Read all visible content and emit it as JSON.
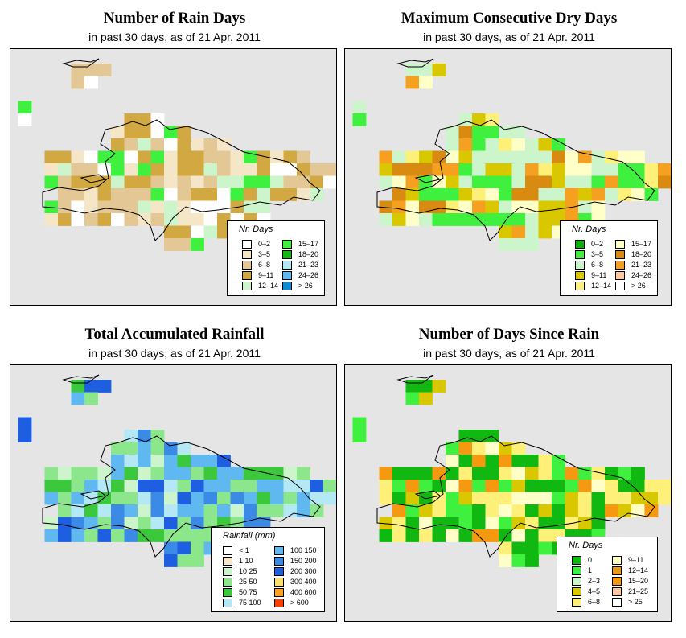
{
  "panels": [
    {
      "title": "Number of Rain Days",
      "subtitle": "in past 30 days, as of  21 Apr. 2011",
      "legend": {
        "title": "Nr. Days",
        "items": [
          {
            "label": "0–2",
            "color": "#ffffff"
          },
          {
            "label": "3–5",
            "color": "#f5e6c8"
          },
          {
            "label": "6–8",
            "color": "#e3c896"
          },
          {
            "label": "9–11",
            "color": "#d2a843"
          },
          {
            "label": "12–14",
            "color": "#ccf5cc"
          },
          {
            "label": "15–17",
            "color": "#3ff03f"
          },
          {
            "label": "18–20",
            "color": "#11b811"
          },
          {
            "label": "21–23",
            "color": "#b5e8f5"
          },
          {
            "label": "24–26",
            "color": "#60b8f0"
          },
          {
            "label": "> 26",
            "color": "#0d8ad6"
          }
        ]
      }
    },
    {
      "title": "Maximum Consecutive Dry Days",
      "subtitle": "in past 30 days, as of  21 Apr. 2011",
      "legend": {
        "title": "Nr. Days",
        "items": [
          {
            "label": "0–2",
            "color": "#0fae0f"
          },
          {
            "label": "3–5",
            "color": "#3ff03f"
          },
          {
            "label": "6–8",
            "color": "#ccf5cc"
          },
          {
            "label": "9–11",
            "color": "#d9c800"
          },
          {
            "label": "12–14",
            "color": "#fff07a"
          },
          {
            "label": "15–17",
            "color": "#ffffc8"
          },
          {
            "label": "18–20",
            "color": "#d98a10"
          },
          {
            "label": "21–23",
            "color": "#f5a020"
          },
          {
            "label": "24–26",
            "color": "#ffc8a0"
          },
          {
            "label": "> 26",
            "color": "#ffffff"
          }
        ]
      }
    },
    {
      "title": "Total Accumulated Rainfall",
      "subtitle": "in past 30 days, as of  21 Apr. 2011",
      "legend": {
        "title": "Rainfall (mm)",
        "items": [
          {
            "label": "< 1",
            "color": "#ffffff"
          },
          {
            "label": "1    10",
            "color": "#f5e6c8"
          },
          {
            "label": "10    25",
            "color": "#ccf5cc"
          },
          {
            "label": "25    50",
            "color": "#8ce68c"
          },
          {
            "label": "50    75",
            "color": "#3cc83c"
          },
          {
            "label": "75   100",
            "color": "#b5e8f5"
          },
          {
            "label": "100   150",
            "color": "#60b8f0"
          },
          {
            "label": "150   200",
            "color": "#3a8ae6"
          },
          {
            "label": "200   300",
            "color": "#1e5ee0"
          },
          {
            "label": "300   400",
            "color": "#ffe066"
          },
          {
            "label": "400   600",
            "color": "#ffa020"
          },
          {
            "label": "> 600",
            "color": "#ff3c00"
          }
        ]
      }
    },
    {
      "title": "Number of Days Since Rain",
      "subtitle": "in past 30 days, as of  21 Apr. 2011",
      "legend": {
        "title": "Nr. Days",
        "items": [
          {
            "label": "0",
            "color": "#11b811"
          },
          {
            "label": "1",
            "color": "#3ff03f"
          },
          {
            "label": "2–3",
            "color": "#ccf5cc"
          },
          {
            "label": "4–5",
            "color": "#d9c800"
          },
          {
            "label": "6–8",
            "color": "#fff07a"
          },
          {
            "label": "9–11",
            "color": "#ffffc8"
          },
          {
            "label": "12–14",
            "color": "#e69a1a"
          },
          {
            "label": "15–20",
            "color": "#f59a10"
          },
          {
            "label": "21–25",
            "color": "#ffc8a0"
          },
          {
            "label": "> 25",
            "color": "#ffffff"
          }
        ]
      }
    }
  ]
}
